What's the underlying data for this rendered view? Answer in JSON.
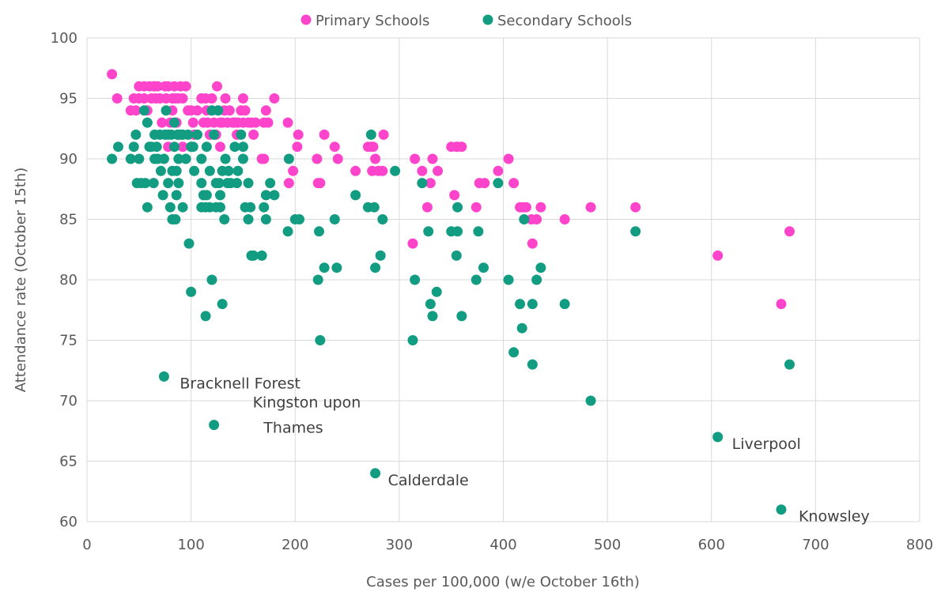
{
  "chart_data": {
    "type": "scatter",
    "xlabel": "Cases per 100,000 (w/e October 16th)",
    "ylabel": "Attendance rate (October 15th)",
    "xlim": [
      0,
      800
    ],
    "ylim": [
      60,
      100
    ],
    "xticks": [
      0,
      100,
      200,
      300,
      400,
      500,
      600,
      700,
      800
    ],
    "yticks": [
      60,
      65,
      70,
      75,
      80,
      85,
      90,
      95,
      100
    ],
    "grid": true,
    "legend_position": "top",
    "series": [
      {
        "name": "Primary Schools",
        "color": "#ff44cc",
        "points": [
          [
            24,
            97
          ],
          [
            29,
            95
          ],
          [
            42,
            94
          ],
          [
            45,
            95
          ],
          [
            47,
            94
          ],
          [
            50,
            96
          ],
          [
            50,
            95
          ],
          [
            55,
            96
          ],
          [
            55,
            95
          ],
          [
            58,
            94
          ],
          [
            60,
            96
          ],
          [
            62,
            95
          ],
          [
            64,
            96
          ],
          [
            65,
            96
          ],
          [
            66,
            95
          ],
          [
            68,
            96
          ],
          [
            70,
            95
          ],
          [
            72,
            93
          ],
          [
            75,
            96
          ],
          [
            76,
            95
          ],
          [
            78,
            96
          ],
          [
            78,
            91
          ],
          [
            80,
            93
          ],
          [
            82,
            95
          ],
          [
            82,
            94
          ],
          [
            84,
            96
          ],
          [
            85,
            95
          ],
          [
            86,
            93
          ],
          [
            88,
            95
          ],
          [
            88,
            92
          ],
          [
            90,
            96
          ],
          [
            92,
            95
          ],
          [
            92,
            91
          ],
          [
            95,
            96
          ],
          [
            97,
            94
          ],
          [
            100,
            94
          ],
          [
            102,
            93
          ],
          [
            103,
            92
          ],
          [
            106,
            94
          ],
          [
            110,
            95
          ],
          [
            112,
            93
          ],
          [
            114,
            95
          ],
          [
            115,
            94
          ],
          [
            116,
            93
          ],
          [
            118,
            92
          ],
          [
            120,
            95
          ],
          [
            120,
            94
          ],
          [
            122,
            93
          ],
          [
            124,
            92
          ],
          [
            125,
            96
          ],
          [
            126,
            94
          ],
          [
            128,
            91
          ],
          [
            128,
            93
          ],
          [
            130,
            93
          ],
          [
            132,
            94
          ],
          [
            133,
            95
          ],
          [
            135,
            93
          ],
          [
            137,
            94
          ],
          [
            140,
            93
          ],
          [
            142,
            93
          ],
          [
            144,
            92
          ],
          [
            145,
            93
          ],
          [
            148,
            94
          ],
          [
            150,
            95
          ],
          [
            150,
            93
          ],
          [
            152,
            94
          ],
          [
            155,
            93
          ],
          [
            158,
            93
          ],
          [
            160,
            92
          ],
          [
            162,
            93
          ],
          [
            168,
            90
          ],
          [
            170,
            90
          ],
          [
            170,
            93
          ],
          [
            172,
            94
          ],
          [
            174,
            93
          ],
          [
            180,
            95
          ],
          [
            193,
            93
          ],
          [
            194,
            88
          ],
          [
            198,
            89
          ],
          [
            202,
            91
          ],
          [
            203,
            92
          ],
          [
            221,
            90
          ],
          [
            222,
            88
          ],
          [
            224,
            88
          ],
          [
            228,
            92
          ],
          [
            238,
            91
          ],
          [
            241,
            90
          ],
          [
            258,
            89
          ],
          [
            270,
            91
          ],
          [
            273,
            91
          ],
          [
            274,
            89
          ],
          [
            275,
            91
          ],
          [
            277,
            90
          ],
          [
            280,
            89
          ],
          [
            284,
            89
          ],
          [
            285,
            92
          ],
          [
            315,
            90
          ],
          [
            322,
            89
          ],
          [
            327,
            86
          ],
          [
            330,
            88
          ],
          [
            332,
            90
          ],
          [
            337,
            89
          ],
          [
            350,
            91
          ],
          [
            353,
            87
          ],
          [
            355,
            91
          ],
          [
            356,
            91
          ],
          [
            360,
            91
          ],
          [
            374,
            86
          ],
          [
            377,
            88
          ],
          [
            382,
            88
          ],
          [
            395,
            89
          ],
          [
            405,
            90
          ],
          [
            410,
            88
          ],
          [
            416,
            86
          ],
          [
            419,
            86
          ],
          [
            422,
            86
          ],
          [
            427,
            85
          ],
          [
            428,
            83
          ],
          [
            432,
            85
          ],
          [
            436,
            86
          ],
          [
            459,
            85
          ],
          [
            484,
            86
          ],
          [
            527,
            86
          ],
          [
            313,
            83
          ],
          [
            606,
            82
          ],
          [
            667,
            78
          ],
          [
            675,
            84
          ]
        ]
      },
      {
        "name": "Secondary Schools",
        "color": "#129c82",
        "points": [
          [
            24,
            90
          ],
          [
            30,
            91
          ],
          [
            42,
            90
          ],
          [
            45,
            91
          ],
          [
            47,
            92
          ],
          [
            48,
            88
          ],
          [
            50,
            90
          ],
          [
            52,
            88
          ],
          [
            55,
            94
          ],
          [
            56,
            88
          ],
          [
            58,
            86
          ],
          [
            58,
            93
          ],
          [
            60,
            91
          ],
          [
            62,
            91
          ],
          [
            64,
            88
          ],
          [
            65,
            92
          ],
          [
            65,
            90
          ],
          [
            67,
            91
          ],
          [
            68,
            90
          ],
          [
            70,
            92
          ],
          [
            71,
            89
          ],
          [
            73,
            87
          ],
          [
            74,
            90
          ],
          [
            75,
            92
          ],
          [
            76,
            94
          ],
          [
            78,
            88
          ],
          [
            78,
            92
          ],
          [
            80,
            86
          ],
          [
            81,
            92
          ],
          [
            82,
            89
          ],
          [
            82,
            85
          ],
          [
            84,
            93
          ],
          [
            84,
            91
          ],
          [
            85,
            85
          ],
          [
            86,
            87
          ],
          [
            86,
            89
          ],
          [
            87,
            92
          ],
          [
            88,
            88
          ],
          [
            88,
            90
          ],
          [
            90,
            92
          ],
          [
            92,
            92
          ],
          [
            92,
            86
          ],
          [
            95,
            90
          ],
          [
            97,
            92
          ],
          [
            98,
            83
          ],
          [
            100,
            79
          ],
          [
            100,
            91
          ],
          [
            102,
            91
          ],
          [
            103,
            89
          ],
          [
            106,
            92
          ],
          [
            110,
            88
          ],
          [
            110,
            86
          ],
          [
            110,
            90
          ],
          [
            112,
            87
          ],
          [
            114,
            77
          ],
          [
            114,
            86
          ],
          [
            115,
            87
          ],
          [
            115,
            91
          ],
          [
            118,
            89
          ],
          [
            118,
            86
          ],
          [
            120,
            94
          ],
          [
            120,
            80
          ],
          [
            122,
            92
          ],
          [
            124,
            86
          ],
          [
            124,
            88
          ],
          [
            126,
            94
          ],
          [
            127,
            88
          ],
          [
            128,
            86
          ],
          [
            128,
            87
          ],
          [
            130,
            78
          ],
          [
            130,
            89
          ],
          [
            132,
            85
          ],
          [
            133,
            90
          ],
          [
            135,
            88
          ],
          [
            136,
            89
          ],
          [
            138,
            88
          ],
          [
            142,
            91
          ],
          [
            144,
            88
          ],
          [
            145,
            89
          ],
          [
            148,
            92
          ],
          [
            150,
            90
          ],
          [
            150,
            91
          ],
          [
            152,
            86
          ],
          [
            155,
            85
          ],
          [
            155,
            88
          ],
          [
            157,
            86
          ],
          [
            158,
            82
          ],
          [
            160,
            82
          ],
          [
            168,
            82
          ],
          [
            170,
            86
          ],
          [
            172,
            87
          ],
          [
            172,
            85
          ],
          [
            176,
            88
          ],
          [
            180,
            87
          ],
          [
            193,
            84
          ],
          [
            194,
            90
          ],
          [
            200,
            85
          ],
          [
            204,
            85
          ],
          [
            222,
            80
          ],
          [
            223,
            84
          ],
          [
            224,
            75
          ],
          [
            228,
            81
          ],
          [
            238,
            85
          ],
          [
            240,
            81
          ],
          [
            258,
            87
          ],
          [
            270,
            86
          ],
          [
            273,
            92
          ],
          [
            276,
            86
          ],
          [
            277,
            81
          ],
          [
            282,
            82
          ],
          [
            284,
            85
          ],
          [
            296,
            89
          ],
          [
            313,
            75
          ],
          [
            315,
            80
          ],
          [
            322,
            88
          ],
          [
            328,
            84
          ],
          [
            330,
            78
          ],
          [
            332,
            77
          ],
          [
            336,
            79
          ],
          [
            350,
            84
          ],
          [
            355,
            82
          ],
          [
            356,
            84
          ],
          [
            356,
            86
          ],
          [
            360,
            77
          ],
          [
            374,
            80
          ],
          [
            376,
            84
          ],
          [
            381,
            81
          ],
          [
            395,
            88
          ],
          [
            405,
            80
          ],
          [
            410,
            74
          ],
          [
            416,
            78
          ],
          [
            418,
            76
          ],
          [
            420,
            85
          ],
          [
            428,
            78
          ],
          [
            428,
            73
          ],
          [
            432,
            80
          ],
          [
            436,
            81
          ],
          [
            459,
            78
          ],
          [
            484,
            70
          ],
          [
            527,
            84
          ],
          [
            675,
            73
          ],
          [
            74,
            72
          ],
          [
            122,
            68
          ],
          [
            277,
            64
          ],
          [
            606,
            67
          ],
          [
            667,
            61
          ]
        ]
      }
    ],
    "annotations": [
      {
        "text": "Bracknell Forest",
        "x": 74,
        "y": 72
      },
      {
        "text": "Kingston upon",
        "x": 122,
        "y": 68
      },
      {
        "text": "Thames",
        "x": 122,
        "y": 68
      },
      {
        "text": "Calderdale",
        "x": 277,
        "y": 64
      },
      {
        "text": "Liverpool",
        "x": 606,
        "y": 67
      },
      {
        "text": "Knowsley",
        "x": 667,
        "y": 61
      }
    ]
  }
}
